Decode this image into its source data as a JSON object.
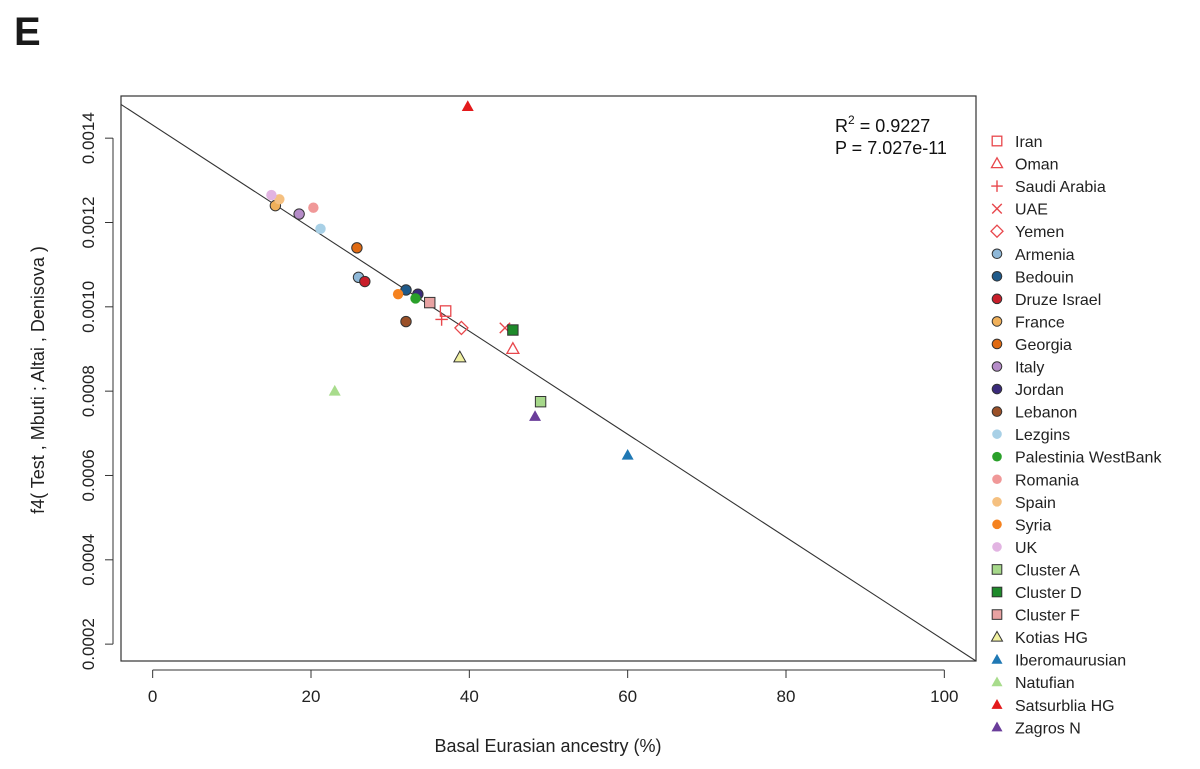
{
  "panel_label": "E",
  "chart_data": {
    "type": "scatter",
    "xlabel": "Basal Eurasian ancestry (%)",
    "ylabel": "f4( Test , Mbuti ; Altai , Denisova )",
    "xlim": [
      -4,
      104
    ],
    "ylim": [
      0.00016,
      0.0015
    ],
    "x_ticks": [
      0,
      20,
      40,
      60,
      80,
      100
    ],
    "y_ticks": [
      0.0002,
      0.0004,
      0.0006,
      0.0008,
      0.001,
      0.0012,
      0.0014
    ],
    "grid": false,
    "legend_position": "right",
    "annotation": {
      "r2_prefix": "R",
      "r2_sup": "2",
      "r2_value": " = 0.9227",
      "p_text": "P = 7.027e-11"
    },
    "fit_line": {
      "x": [
        -4,
        104
      ],
      "y": [
        0.00148,
        0.00016
      ]
    },
    "series": [
      {
        "name": "Iran",
        "marker": "square-open",
        "color": "#e8474c",
        "points": [
          [
            37.0,
            0.00099
          ]
        ]
      },
      {
        "name": "Oman",
        "marker": "triangle-open",
        "color": "#e8474c",
        "points": [
          [
            45.5,
            0.0009
          ]
        ]
      },
      {
        "name": "Saudi Arabia",
        "marker": "plus",
        "color": "#e8474c",
        "points": [
          [
            36.5,
            0.00097
          ]
        ]
      },
      {
        "name": "UAE",
        "marker": "x",
        "color": "#e8474c",
        "points": [
          [
            44.5,
            0.00095
          ]
        ]
      },
      {
        "name": "Yemen",
        "marker": "diamond-open",
        "color": "#e8474c",
        "points": [
          [
            39.0,
            0.00095
          ]
        ]
      },
      {
        "name": "Armenia",
        "marker": "circle-outlined",
        "color": "#8fb8d8",
        "points": [
          [
            26.0,
            0.00107
          ]
        ]
      },
      {
        "name": "Bedouin",
        "marker": "circle-outlined",
        "color": "#1f5a8a",
        "points": [
          [
            32.0,
            0.00104
          ]
        ]
      },
      {
        "name": "Druze Israel",
        "marker": "circle-outlined",
        "color": "#c81e2a",
        "points": [
          [
            26.8,
            0.00106
          ]
        ]
      },
      {
        "name": "France",
        "marker": "circle-outlined",
        "color": "#f0b05a",
        "points": [
          [
            15.5,
            0.00124
          ]
        ]
      },
      {
        "name": "Georgia",
        "marker": "circle-outlined",
        "color": "#e06a12",
        "points": [
          [
            25.8,
            0.00114
          ]
        ]
      },
      {
        "name": "Italy",
        "marker": "circle-outlined",
        "color": "#b58cc8",
        "points": [
          [
            18.5,
            0.00122
          ]
        ]
      },
      {
        "name": "Jordan",
        "marker": "circle-outlined",
        "color": "#3a2a7a",
        "points": [
          [
            33.5,
            0.00103
          ]
        ]
      },
      {
        "name": "Lebanon",
        "marker": "circle-outlined",
        "color": "#9a5028",
        "points": [
          [
            32.0,
            0.000965
          ]
        ]
      },
      {
        "name": "Lezgins",
        "marker": "circle",
        "color": "#a8d0e6",
        "points": [
          [
            21.2,
            0.001185
          ]
        ]
      },
      {
        "name": "Palestinia WestBank",
        "marker": "circle",
        "color": "#2aa02a",
        "points": [
          [
            33.2,
            0.00102
          ]
        ]
      },
      {
        "name": "Romania",
        "marker": "circle",
        "color": "#f09898",
        "points": [
          [
            20.3,
            0.001235
          ]
        ]
      },
      {
        "name": "Spain",
        "marker": "circle",
        "color": "#f5c080",
        "points": [
          [
            16.0,
            0.001255
          ]
        ]
      },
      {
        "name": "Syria",
        "marker": "circle",
        "color": "#f5821f",
        "points": [
          [
            31.0,
            0.00103
          ]
        ]
      },
      {
        "name": "UK",
        "marker": "circle",
        "color": "#e2b4e2",
        "points": [
          [
            15.0,
            0.001265
          ]
        ]
      },
      {
        "name": "Cluster A",
        "marker": "square-outlined",
        "color": "#a6d88a",
        "points": [
          [
            49.0,
            0.000775
          ]
        ]
      },
      {
        "name": "Cluster D",
        "marker": "square-outlined",
        "color": "#1e8a2a",
        "points": [
          [
            45.5,
            0.000945
          ]
        ]
      },
      {
        "name": "Cluster F",
        "marker": "square-outlined",
        "color": "#e8a2a2",
        "points": [
          [
            35.0,
            0.00101
          ]
        ]
      },
      {
        "name": "Kotias HG",
        "marker": "triangle-outlined",
        "color": "#f0f0a0",
        "points": [
          [
            38.8,
            0.00088
          ]
        ]
      },
      {
        "name": "Iberomaurusian",
        "marker": "triangle",
        "color": "#1f78b4",
        "points": [
          [
            60.0,
            0.000648
          ]
        ]
      },
      {
        "name": "Natufian",
        "marker": "triangle",
        "color": "#a8dc8c",
        "points": [
          [
            23.0,
            0.0008
          ]
        ]
      },
      {
        "name": "Satsurblia HG",
        "marker": "triangle",
        "color": "#e31a1c",
        "points": [
          [
            39.8,
            0.001475
          ]
        ]
      },
      {
        "name": "Zagros N",
        "marker": "triangle",
        "color": "#6a3d9a",
        "points": [
          [
            48.3,
            0.00074
          ]
        ]
      }
    ]
  }
}
